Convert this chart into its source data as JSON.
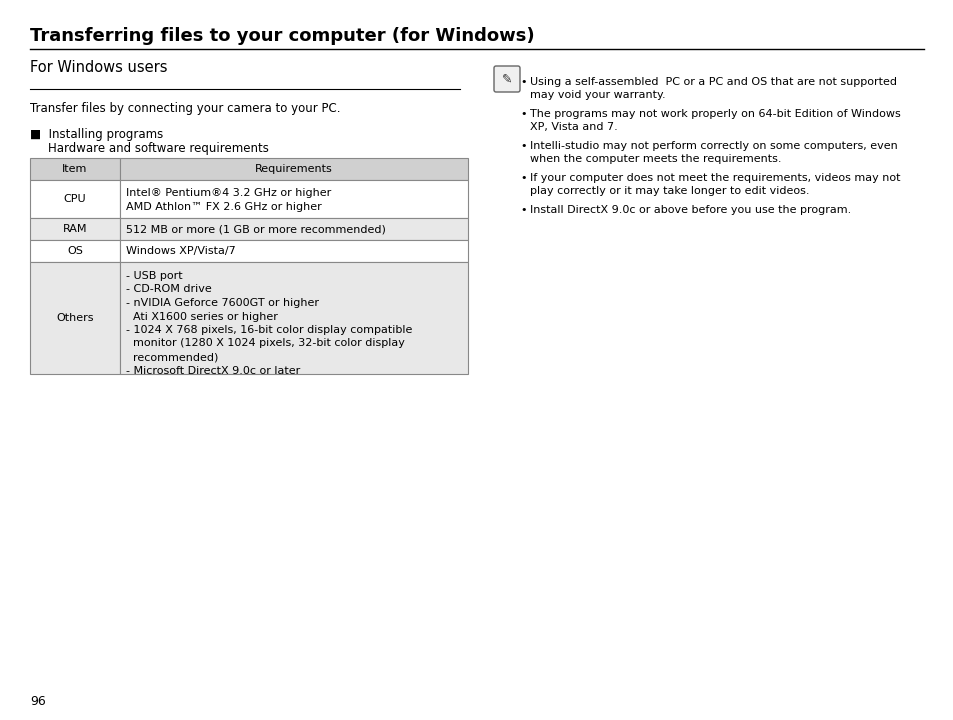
{
  "title": "Transferring files to your computer (for Windows)",
  "section_header": "For Windows users",
  "intro_text": "Transfer files by connecting your camera to your PC.",
  "table_headers": [
    "Item",
    "Requirements"
  ],
  "header_bg": "#d0d0d0",
  "row_bg_light": "#ffffff",
  "row_bg_gray": "#e8e8e8",
  "note_items": [
    "Using a self-assembled  PC or a PC and OS that are not supported\nmay void your warranty.",
    "The programs may not work properly on 64-bit Edition of Windows\nXP, Vista and 7.",
    "Intelli-studio may not perform correctly on some computers, even\nwhen the computer meets the requirements.",
    "If your computer does not meet the requirements, videos may not\nplay correctly or it may take longer to edit videos.",
    "Install DirectX 9.0c or above before you use the program."
  ],
  "page_number": "96",
  "bg_color": "#ffffff",
  "text_color": "#000000",
  "table_border_color": "#888888",
  "title_font_size": 13,
  "body_font_size": 8.5,
  "small_font_size": 8,
  "others_lines": [
    "- USB port",
    "- CD-ROM drive",
    "- nVIDIA Geforce 7600GT or higher",
    "  Ati X1600 series or higher",
    "- 1024 X 768 pixels, 16-bit color display compatible",
    "  monitor (1280 X 1024 pixels, 32-bit color display",
    "  recommended)",
    "- Microsoft DirectX 9.0c or later"
  ]
}
